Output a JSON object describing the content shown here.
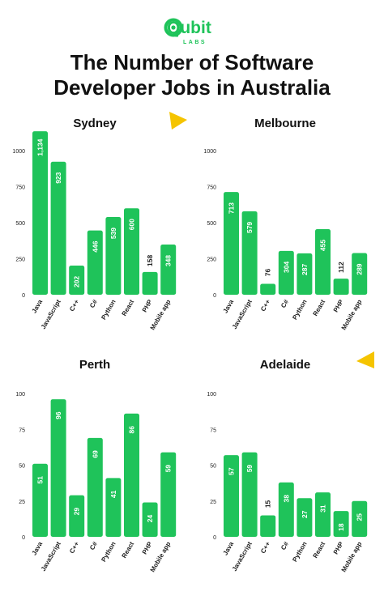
{
  "brand": {
    "logo_text": "Qubit",
    "logo_subtext": "LABS",
    "accent_color": "#1fc35a",
    "deco_color": "#f5c400"
  },
  "headline": {
    "line1": "The Number of Software",
    "line2": "Developer Jobs in Australia"
  },
  "chart_data": [
    {
      "type": "bar",
      "title": "Sydney",
      "categories": [
        "Java",
        "JavaScript",
        "C++",
        "C#",
        "Python",
        "React",
        "PHP",
        "Mobile app"
      ],
      "values": [
        1134,
        923,
        202,
        446,
        539,
        600,
        158,
        348
      ],
      "data_labels": [
        "1,134",
        "923",
        "202",
        "446",
        "539",
        "600",
        "158",
        "348"
      ],
      "y_ticks": [
        0,
        250,
        500,
        750,
        1000
      ],
      "ylim": [
        0,
        1000
      ],
      "grid": false,
      "bar_color": "#1fc35a"
    },
    {
      "type": "bar",
      "title": "Melbourne",
      "categories": [
        "Java",
        "JavaScript",
        "C++",
        "C#",
        "Python",
        "React",
        "PHP",
        "Mobile app"
      ],
      "values": [
        713,
        579,
        76,
        304,
        287,
        455,
        112,
        289
      ],
      "data_labels": [
        "713",
        "579",
        "76",
        "304",
        "287",
        "455",
        "112",
        "289"
      ],
      "y_ticks": [
        0,
        250,
        500,
        750,
        1000
      ],
      "ylim": [
        0,
        1000
      ],
      "grid": false,
      "bar_color": "#1fc35a"
    },
    {
      "type": "bar",
      "title": "Perth",
      "categories": [
        "Java",
        "JavaScript",
        "C++",
        "C#",
        "Python",
        "React",
        "PHP",
        "Mobile app"
      ],
      "values": [
        51,
        96,
        29,
        69,
        41,
        86,
        24,
        59
      ],
      "data_labels": [
        "51",
        "96",
        "29",
        "69",
        "41",
        "86",
        "24",
        "59"
      ],
      "y_ticks": [
        0,
        25,
        50,
        75,
        100
      ],
      "ylim": [
        0,
        100
      ],
      "grid": false,
      "bar_color": "#1fc35a"
    },
    {
      "type": "bar",
      "title": "Adelaide",
      "categories": [
        "Java",
        "JavaScript",
        "C++",
        "C#",
        "Python",
        "React",
        "PHP",
        "Mobile app"
      ],
      "values": [
        57,
        59,
        15,
        38,
        27,
        31,
        18,
        25
      ],
      "data_labels": [
        "57",
        "59",
        "15",
        "38",
        "27",
        "31",
        "18",
        "25"
      ],
      "y_ticks": [
        0,
        25,
        50,
        75,
        100
      ],
      "ylim": [
        0,
        100
      ],
      "grid": false,
      "bar_color": "#1fc35a"
    }
  ]
}
